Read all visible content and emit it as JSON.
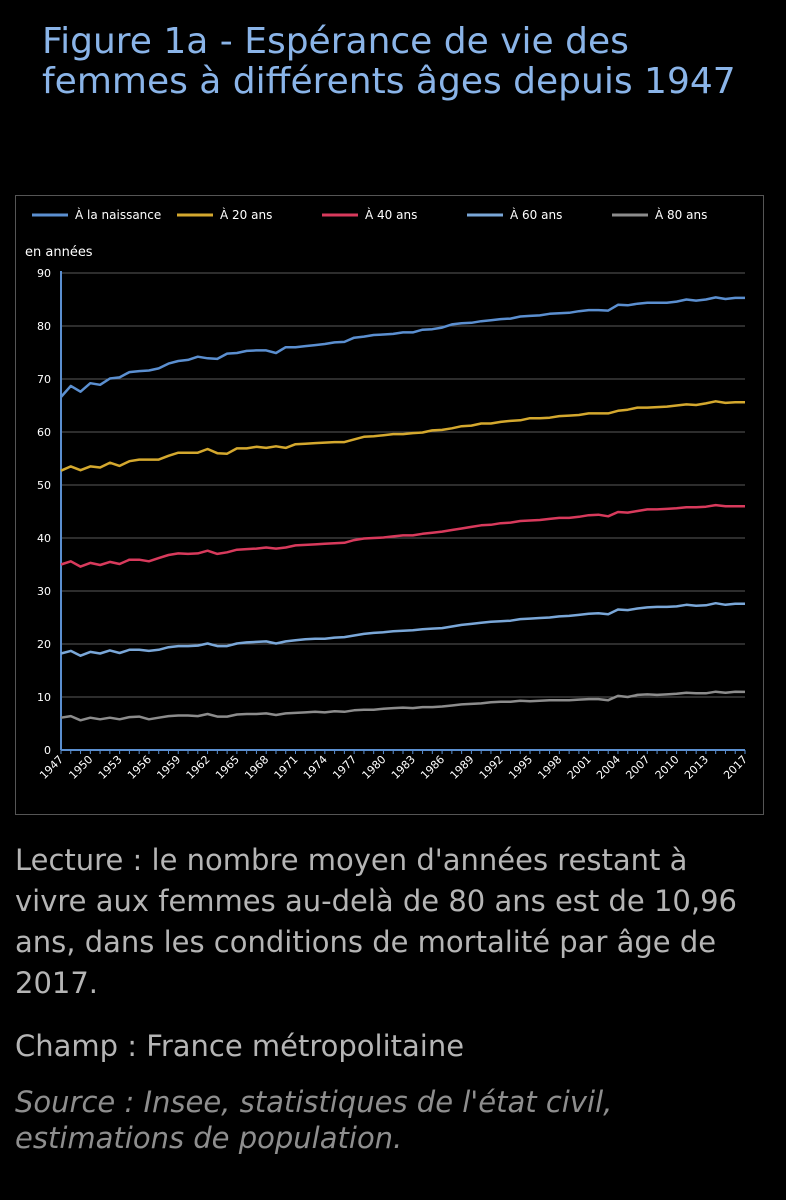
{
  "header": {
    "title": "Figure 1a - Espérance de vie des femmes à différents âges depuis 1947"
  },
  "chart_data": {
    "type": "line",
    "title": "",
    "xlabel": "",
    "ylabel": "en années",
    "ylim": [
      0,
      90
    ],
    "yticks": [
      "0",
      "10",
      "20",
      "30",
      "40",
      "50",
      "60",
      "70",
      "80",
      "90"
    ],
    "xticks": [
      "1947",
      "1950",
      "1953",
      "1956",
      "1959",
      "1962",
      "1965",
      "1968",
      "1971",
      "1974",
      "1977",
      "1980",
      "1983",
      "1986",
      "1989",
      "1992",
      "1995",
      "1998",
      "2001",
      "2004",
      "2007",
      "2010",
      "2013",
      "2017"
    ],
    "legend_position": "top",
    "grid": "horizontal",
    "x": [
      1947,
      1948,
      1949,
      1950,
      1951,
      1952,
      1953,
      1954,
      1955,
      1956,
      1957,
      1958,
      1959,
      1960,
      1961,
      1962,
      1963,
      1964,
      1965,
      1966,
      1967,
      1968,
      1969,
      1970,
      1971,
      1972,
      1973,
      1974,
      1975,
      1976,
      1977,
      1978,
      1979,
      1980,
      1981,
      1982,
      1983,
      1984,
      1985,
      1986,
      1987,
      1988,
      1989,
      1990,
      1991,
      1992,
      1993,
      1994,
      1995,
      1996,
      1997,
      1998,
      1999,
      2000,
      2001,
      2002,
      2003,
      2004,
      2005,
      2006,
      2007,
      2008,
      2009,
      2010,
      2011,
      2012,
      2013,
      2014,
      2015,
      2016,
      2017
    ],
    "series": [
      {
        "name": "À la naissance",
        "color": "#5b8fd0",
        "values": [
          66.6,
          68.7,
          67.6,
          69.2,
          68.9,
          70.1,
          70.3,
          71.3,
          71.5,
          71.6,
          72.0,
          72.9,
          73.4,
          73.6,
          74.2,
          73.9,
          73.8,
          74.8,
          74.9,
          75.3,
          75.4,
          75.4,
          74.9,
          76.0,
          76.0,
          76.2,
          76.4,
          76.6,
          76.9,
          77.0,
          77.8,
          78.0,
          78.3,
          78.4,
          78.5,
          78.8,
          78.8,
          79.3,
          79.4,
          79.7,
          80.3,
          80.5,
          80.6,
          80.9,
          81.1,
          81.3,
          81.4,
          81.8,
          81.9,
          82.0,
          82.3,
          82.4,
          82.5,
          82.8,
          83.0,
          83.0,
          82.9,
          84.0,
          83.9,
          84.2,
          84.4,
          84.4,
          84.4,
          84.6,
          85.0,
          84.8,
          85.0,
          85.4,
          85.1,
          85.3,
          85.3
        ]
      },
      {
        "name": "À 20 ans",
        "color": "#d4a82e",
        "values": [
          52.7,
          53.5,
          52.8,
          53.5,
          53.3,
          54.2,
          53.6,
          54.5,
          54.8,
          54.8,
          54.8,
          55.5,
          56.1,
          56.1,
          56.1,
          56.8,
          56.0,
          55.9,
          56.9,
          56.9,
          57.2,
          57.0,
          57.3,
          57.0,
          57.7,
          57.8,
          57.9,
          58.0,
          58.1,
          58.1,
          58.6,
          59.1,
          59.2,
          59.4,
          59.6,
          59.6,
          59.8,
          59.9,
          60.3,
          60.4,
          60.7,
          61.1,
          61.2,
          61.6,
          61.6,
          61.9,
          62.1,
          62.2,
          62.6,
          62.6,
          62.7,
          63.0,
          63.1,
          63.2,
          63.5,
          63.5,
          63.5,
          64.0,
          64.2,
          64.6,
          64.6,
          64.7,
          64.8,
          65.0,
          65.2,
          65.1,
          65.4,
          65.8,
          65.5,
          65.6,
          65.6
        ]
      },
      {
        "name": "À 40 ans",
        "color": "#d83a5c",
        "values": [
          35.0,
          35.6,
          34.6,
          35.3,
          34.9,
          35.5,
          35.1,
          35.9,
          35.9,
          35.6,
          36.2,
          36.8,
          37.1,
          37.0,
          37.1,
          37.6,
          37.0,
          37.3,
          37.8,
          37.9,
          38.0,
          38.2,
          38.0,
          38.2,
          38.6,
          38.7,
          38.8,
          38.9,
          39.0,
          39.1,
          39.6,
          39.9,
          40.0,
          40.1,
          40.3,
          40.5,
          40.5,
          40.8,
          41.0,
          41.2,
          41.5,
          41.8,
          42.1,
          42.4,
          42.5,
          42.8,
          42.9,
          43.2,
          43.3,
          43.4,
          43.6,
          43.8,
          43.8,
          44.0,
          44.3,
          44.4,
          44.1,
          44.9,
          44.8,
          45.1,
          45.4,
          45.4,
          45.5,
          45.6,
          45.8,
          45.8,
          45.9,
          46.2,
          46.0,
          46.0,
          46.0
        ]
      },
      {
        "name": "À 60 ans",
        "color": "#7aa7d8",
        "values": [
          18.2,
          18.7,
          17.8,
          18.5,
          18.2,
          18.8,
          18.3,
          18.9,
          18.9,
          18.7,
          18.9,
          19.4,
          19.6,
          19.6,
          19.7,
          20.1,
          19.6,
          19.6,
          20.1,
          20.3,
          20.4,
          20.5,
          20.1,
          20.5,
          20.7,
          20.9,
          21.0,
          21.0,
          21.2,
          21.3,
          21.6,
          21.9,
          22.1,
          22.2,
          22.4,
          22.5,
          22.6,
          22.8,
          22.9,
          23.0,
          23.3,
          23.6,
          23.8,
          24.0,
          24.2,
          24.3,
          24.4,
          24.7,
          24.8,
          24.9,
          25.0,
          25.2,
          25.3,
          25.5,
          25.7,
          25.8,
          25.6,
          26.5,
          26.4,
          26.7,
          26.9,
          27.0,
          27.0,
          27.1,
          27.4,
          27.2,
          27.3,
          27.7,
          27.4,
          27.6,
          27.6
        ]
      },
      {
        "name": "À 80 ans",
        "color": "#8c8c8c",
        "values": [
          6.1,
          6.4,
          5.6,
          6.1,
          5.8,
          6.1,
          5.8,
          6.2,
          6.3,
          5.8,
          6.1,
          6.4,
          6.5,
          6.5,
          6.4,
          6.8,
          6.3,
          6.3,
          6.7,
          6.8,
          6.8,
          6.9,
          6.6,
          6.9,
          7.0,
          7.1,
          7.2,
          7.1,
          7.3,
          7.2,
          7.5,
          7.6,
          7.6,
          7.8,
          7.9,
          8.0,
          7.9,
          8.1,
          8.1,
          8.2,
          8.4,
          8.6,
          8.7,
          8.8,
          9.0,
          9.1,
          9.1,
          9.3,
          9.2,
          9.3,
          9.4,
          9.4,
          9.4,
          9.5,
          9.6,
          9.6,
          9.4,
          10.2,
          10.0,
          10.4,
          10.5,
          10.4,
          10.5,
          10.6,
          10.8,
          10.7,
          10.7,
          11.0,
          10.8,
          11.0,
          10.96
        ]
      }
    ]
  },
  "notes": {
    "lecture": "Lecture : le nombre moyen d'années restant à vivre aux femmes au-delà de 80 ans est de 10,96 ans, dans les conditions de mortalité par âge de 2017.",
    "champ": "Champ : France métropolitaine",
    "source": "Source : Insee, statistiques de l'état civil, estimations de population."
  }
}
